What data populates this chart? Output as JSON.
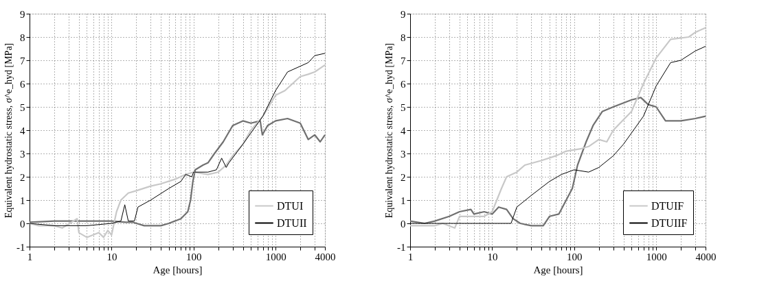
{
  "chart_data": [
    {
      "type": "line",
      "xlabel": "Age [hours]",
      "ylabel": "Equivalent hydrostatic stress, σ^e_hyd [MPa]",
      "log": "x",
      "grid": true,
      "legend": "bottom right",
      "line_style": "solid",
      "marker": "none",
      "xlim": [
        1,
        4000
      ],
      "ylim": [
        -1,
        9
      ],
      "xticks": [
        1,
        {
          "value": 2,
          "label": null
        },
        {
          "value": 3,
          "label": null
        },
        {
          "value": 4,
          "label": null
        },
        {
          "value": 5,
          "label": null
        },
        {
          "value": 6,
          "label": null
        },
        {
          "value": 7,
          "label": null
        },
        {
          "value": 8,
          "label": null
        },
        {
          "value": 9,
          "label": null
        },
        10,
        {
          "value": 20,
          "label": null
        },
        {
          "value": 30,
          "label": null
        },
        {
          "value": 40,
          "label": null
        },
        {
          "value": 50,
          "label": null
        },
        {
          "value": 60,
          "label": null
        },
        {
          "value": 70,
          "label": null
        },
        {
          "value": 80,
          "label": null
        },
        {
          "value": 90,
          "label": null
        },
        100,
        {
          "value": 200,
          "label": null
        },
        {
          "value": 300,
          "label": null
        },
        {
          "value": 400,
          "label": null
        },
        {
          "value": 500,
          "label": null
        },
        {
          "value": 600,
          "label": null
        },
        {
          "value": 700,
          "label": null
        },
        {
          "value": 800,
          "label": null
        },
        {
          "value": 900,
          "label": null
        },
        1000,
        {
          "value": 2000,
          "label": null
        },
        {
          "value": 3000,
          "label": null
        },
        4000
      ],
      "yticks": [
        -1,
        0,
        1,
        2,
        3,
        4,
        5,
        6,
        7,
        8,
        9
      ],
      "series": [
        {
          "color": "#707070",
          "x": [
            1,
            2,
            5,
            10,
            15,
            18,
            25,
            40,
            50,
            70,
            85,
            92,
            98,
            105,
            130,
            150,
            180,
            230,
            300,
            400,
            500,
            650,
            690,
            800,
            1000,
            1400,
            2000,
            2500,
            3000,
            3500,
            4000
          ],
          "values": [
            0.05,
            0.1,
            0.1,
            0.1,
            0.05,
            0.05,
            -0.1,
            -0.1,
            0,
            0.2,
            0.5,
            1.0,
            1.8,
            2.3,
            2.5,
            2.6,
            3.0,
            3.5,
            4.2,
            4.4,
            4.3,
            4.4,
            3.8,
            4.2,
            4.4,
            4.5,
            4.3,
            3.6,
            3.8,
            3.5,
            3.8
          ]
        },
        {
          "name": "DTUI",
          "color": "#c8c8c8",
          "x": [
            1,
            1.3,
            2,
            2.5,
            3.8,
            4,
            5,
            7,
            8,
            9,
            10,
            11.5,
            13,
            16,
            20,
            30,
            40,
            60,
            80,
            100,
            150,
            200,
            250,
            300,
            400,
            500,
            700,
            1000,
            1300,
            2000,
            2500,
            3000,
            4000
          ],
          "values": [
            0,
            -0.1,
            -0.1,
            -0.2,
            0.2,
            -0.4,
            -0.6,
            -0.4,
            -0.6,
            -0.3,
            -0.5,
            0.5,
            1.0,
            1.3,
            1.4,
            1.6,
            1.7,
            1.9,
            2.1,
            2.2,
            2.1,
            2.2,
            2.5,
            2.9,
            3.4,
            4.0,
            4.6,
            5.5,
            5.7,
            6.3,
            6.4,
            6.5,
            6.8
          ]
        },
        {
          "name": "DTUII",
          "color": "#000000",
          "x": [
            1,
            2,
            5,
            10,
            13,
            14.5,
            16,
            19,
            21,
            30,
            50,
            70,
            80,
            95,
            100,
            150,
            190,
            220,
            250,
            270,
            400,
            700,
            1000,
            1400,
            2500,
            3000,
            4000
          ],
          "values": [
            0,
            -0.1,
            -0.1,
            0,
            0.1,
            0.8,
            0.1,
            0.1,
            0.7,
            1.0,
            1.5,
            1.8,
            2.1,
            2.0,
            2.2,
            2.2,
            2.3,
            2.8,
            2.4,
            2.6,
            3.4,
            4.6,
            5.7,
            6.5,
            6.9,
            7.2,
            7.3
          ]
        }
      ]
    },
    {
      "type": "line",
      "xlabel": "Age [hours]",
      "ylabel": "Equivalent hydrostatic stress, σ^e_hyd [MPa]",
      "log": "x",
      "grid": true,
      "legend": "bottom right",
      "line_style": "solid",
      "marker": "none",
      "xlim": [
        1,
        4000
      ],
      "ylim": [
        -1,
        9
      ],
      "xticks": [
        1,
        {
          "value": 2,
          "label": null
        },
        {
          "value": 3,
          "label": null
        },
        {
          "value": 4,
          "label": null
        },
        {
          "value": 5,
          "label": null
        },
        {
          "value": 6,
          "label": null
        },
        {
          "value": 7,
          "label": null
        },
        {
          "value": 8,
          "label": null
        },
        {
          "value": 9,
          "label": null
        },
        10,
        {
          "value": 20,
          "label": null
        },
        {
          "value": 30,
          "label": null
        },
        {
          "value": 40,
          "label": null
        },
        {
          "value": 50,
          "label": null
        },
        {
          "value": 60,
          "label": null
        },
        {
          "value": 70,
          "label": null
        },
        {
          "value": 80,
          "label": null
        },
        {
          "value": 90,
          "label": null
        },
        100,
        {
          "value": 200,
          "label": null
        },
        {
          "value": 300,
          "label": null
        },
        {
          "value": 400,
          "label": null
        },
        {
          "value": 500,
          "label": null
        },
        {
          "value": 600,
          "label": null
        },
        {
          "value": 700,
          "label": null
        },
        {
          "value": 800,
          "label": null
        },
        {
          "value": 900,
          "label": null
        },
        1000,
        {
          "value": 2000,
          "label": null
        },
        {
          "value": 3000,
          "label": null
        },
        4000
      ],
      "yticks": [
        -1,
        0,
        1,
        2,
        3,
        4,
        5,
        6,
        7,
        8,
        9
      ],
      "series": [
        {
          "color": "#707070",
          "x": [
            1,
            1.5,
            2,
            3,
            4,
            5.5,
            6,
            8,
            10,
            12,
            15,
            18,
            22,
            30,
            42,
            50,
            65,
            80,
            95,
            110,
            140,
            170,
            220,
            300,
            500,
            650,
            800,
            1000,
            1300,
            2000,
            3000,
            4000
          ],
          "values": [
            0.1,
            0,
            0.1,
            0.3,
            0.5,
            0.6,
            0.4,
            0.5,
            0.4,
            0.7,
            0.6,
            0.2,
            0,
            -0.1,
            -0.1,
            0.3,
            0.4,
            1.0,
            1.5,
            2.5,
            3.5,
            4.2,
            4.8,
            5.0,
            5.3,
            5.4,
            5.1,
            5.0,
            4.4,
            4.4,
            4.5,
            4.6
          ]
        },
        {
          "name": "DTUIF",
          "color": "#c8c8c8",
          "x": [
            1,
            2,
            2.5,
            3.5,
            4,
            6,
            8,
            10,
            13,
            15,
            20,
            25,
            40,
            60,
            80,
            120,
            150,
            200,
            250,
            300,
            500,
            700,
            1000,
            1500,
            2500,
            3000,
            4000
          ],
          "values": [
            -0.1,
            -0.1,
            0,
            -0.2,
            0.3,
            0.3,
            0.3,
            0.5,
            1.5,
            2.0,
            2.2,
            2.5,
            2.7,
            2.9,
            3.1,
            3.2,
            3.3,
            3.6,
            3.5,
            4.0,
            4.8,
            6.0,
            7.1,
            7.9,
            8.0,
            8.2,
            8.4
          ]
        },
        {
          "name": "DTUIIF",
          "color": "#000000",
          "x": [
            1,
            3,
            10,
            17,
            20,
            30,
            50,
            70,
            100,
            150,
            200,
            300,
            400,
            700,
            1000,
            1500,
            2000,
            3000,
            4000
          ],
          "values": [
            0,
            0,
            0,
            0,
            0.7,
            1.2,
            1.8,
            2.1,
            2.3,
            2.2,
            2.4,
            2.9,
            3.4,
            4.6,
            5.9,
            6.9,
            7.0,
            7.4,
            7.6
          ]
        }
      ]
    }
  ]
}
